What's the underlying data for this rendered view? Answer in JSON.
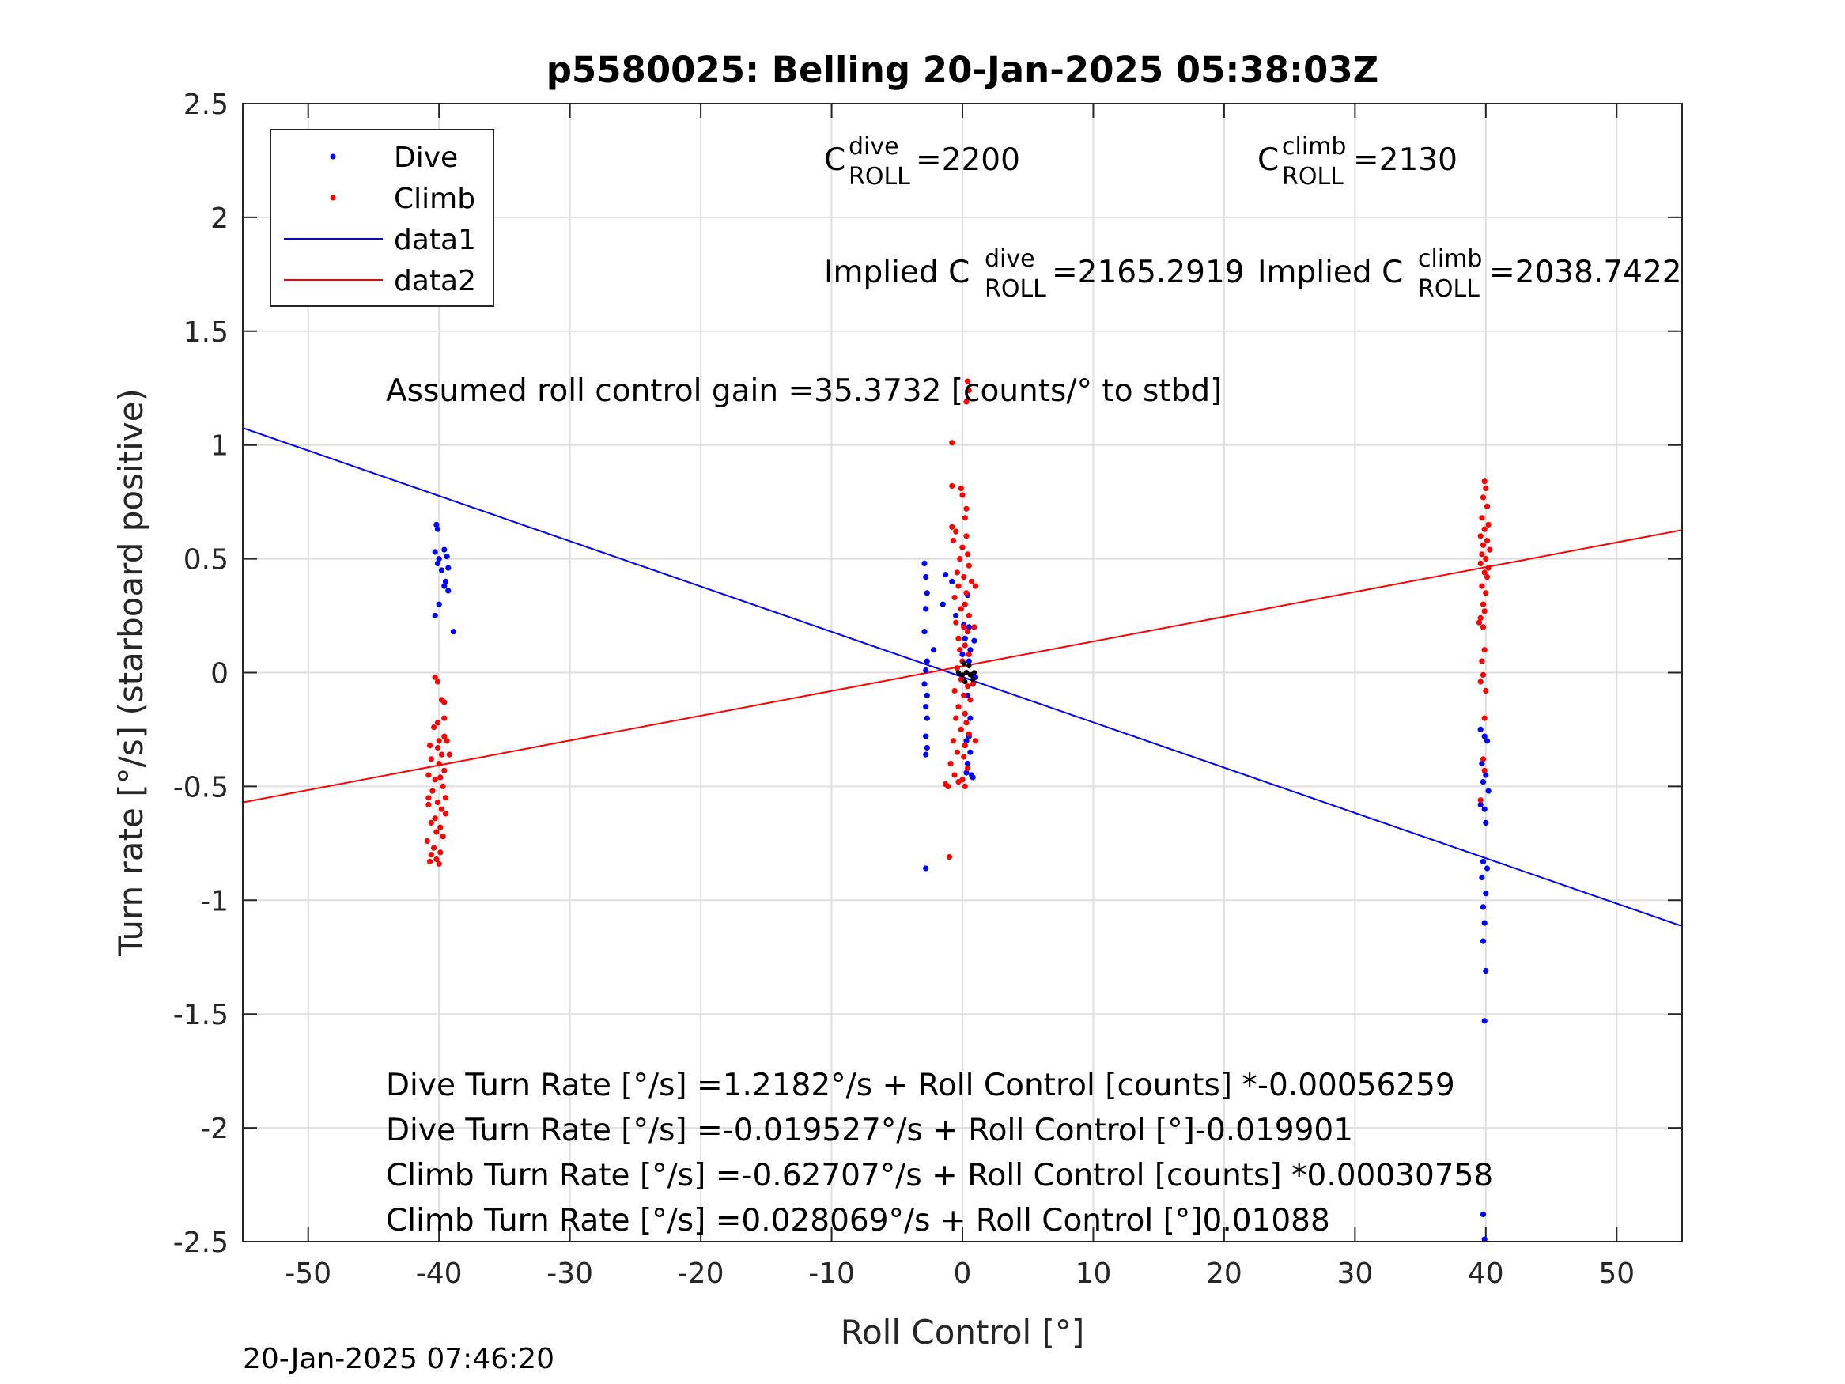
{
  "chart_data": {
    "type": "scatter",
    "title": "p5580025: Belling 20-Jan-2025 05:38:03Z",
    "xlabel": "Roll Control [°]",
    "ylabel": "Turn rate [°/s] (starboard positive)",
    "xlim": [
      -55,
      55
    ],
    "ylim": [
      -2.5,
      2.5
    ],
    "xticks": [
      -50,
      -40,
      -30,
      -20,
      -10,
      0,
      10,
      20,
      30,
      40,
      50
    ],
    "xtick_labels": [
      "-50",
      "-40",
      "-30",
      "-20",
      "-10",
      "0",
      "10",
      "20",
      "30",
      "40",
      "50"
    ],
    "yticks": [
      2.5,
      2,
      1.5,
      1,
      0.5,
      0,
      -0.5,
      -1,
      -1.5,
      -2,
      -2.5
    ],
    "ytick_labels": [
      "2.5",
      "2",
      "1.5",
      "1",
      "0.5",
      "0",
      "-0.5",
      "-1",
      "-1.5",
      "-2",
      "-2.5"
    ],
    "grid": true,
    "legend_position": "top-left",
    "series": [
      {
        "name": "Dive",
        "kind": "points",
        "color": "#0000ff",
        "points": [
          [
            -40.2,
            0.65
          ],
          [
            -40.1,
            0.63
          ],
          [
            -40.3,
            0.53
          ],
          [
            -39.6,
            0.54
          ],
          [
            -40.0,
            0.5
          ],
          [
            -39.4,
            0.51
          ],
          [
            -39.8,
            0.45
          ],
          [
            -39.3,
            0.46
          ],
          [
            -39.6,
            0.38
          ],
          [
            -39.3,
            0.36
          ],
          [
            -40.0,
            0.3
          ],
          [
            -40.3,
            0.25
          ],
          [
            -38.9,
            0.18
          ],
          [
            -39.5,
            0.4
          ],
          [
            -40.1,
            0.48
          ],
          [
            -2.9,
            0.48
          ],
          [
            -2.8,
            0.42
          ],
          [
            -2.7,
            0.35
          ],
          [
            -2.8,
            0.28
          ],
          [
            -2.9,
            0.18
          ],
          [
            -2.7,
            0.05
          ],
          [
            -2.8,
            0.01
          ],
          [
            -2.9,
            -0.05
          ],
          [
            -2.7,
            -0.1
          ],
          [
            -2.8,
            -0.15
          ],
          [
            -2.7,
            -0.2
          ],
          [
            -2.8,
            -0.28
          ],
          [
            -2.7,
            -0.33
          ],
          [
            -2.8,
            -0.36
          ],
          [
            -2.2,
            0.1
          ],
          [
            -1.5,
            0.3
          ],
          [
            -1.3,
            0.43
          ],
          [
            -0.8,
            0.4
          ],
          [
            -0.5,
            0.25
          ],
          [
            0.1,
            0.21
          ],
          [
            0.4,
            0.34
          ],
          [
            0.5,
            0.2
          ],
          [
            0.6,
            0.1
          ],
          [
            0.5,
            0.05
          ],
          [
            0.7,
            -0.01
          ],
          [
            0.8,
            -0.05
          ],
          [
            0.4,
            -0.1
          ],
          [
            0.6,
            -0.2
          ],
          [
            0.5,
            -0.28
          ],
          [
            0.3,
            -0.3
          ],
          [
            0.6,
            -0.35
          ],
          [
            0.4,
            -0.4
          ],
          [
            0.7,
            -0.45
          ],
          [
            0.8,
            -0.46
          ],
          [
            0.3,
            -0.44
          ],
          [
            0.2,
            0.15
          ],
          [
            0.0,
            0.08
          ],
          [
            0.9,
            0.14
          ],
          [
            1.0,
            -0.02
          ],
          [
            -2.8,
            -0.86
          ],
          [
            39.6,
            -0.25
          ],
          [
            39.9,
            -0.28
          ],
          [
            40.1,
            -0.3
          ],
          [
            39.7,
            -0.4
          ],
          [
            40.0,
            -0.45
          ],
          [
            39.8,
            -0.48
          ],
          [
            40.2,
            -0.52
          ],
          [
            39.6,
            -0.58
          ],
          [
            39.9,
            -0.6
          ],
          [
            40.0,
            -0.66
          ],
          [
            39.8,
            -0.83
          ],
          [
            40.1,
            -0.86
          ],
          [
            39.7,
            -0.9
          ],
          [
            40.0,
            -0.97
          ],
          [
            39.8,
            -1.03
          ],
          [
            39.9,
            -1.1
          ],
          [
            39.8,
            -1.18
          ],
          [
            40.0,
            -1.31
          ],
          [
            39.9,
            -1.53
          ],
          [
            39.8,
            -2.38
          ],
          [
            39.9,
            -2.49
          ]
        ]
      },
      {
        "name": "Climb",
        "kind": "points",
        "color": "#ff0000",
        "points": [
          [
            -40.3,
            -0.02
          ],
          [
            -40.1,
            -0.04
          ],
          [
            -39.8,
            -0.12
          ],
          [
            -39.6,
            -0.13
          ],
          [
            -40.1,
            -0.22
          ],
          [
            -39.6,
            -0.2
          ],
          [
            -40.4,
            -0.24
          ],
          [
            -40.0,
            -0.3
          ],
          [
            -40.7,
            -0.32
          ],
          [
            -39.4,
            -0.3
          ],
          [
            -40.1,
            -0.33
          ],
          [
            -39.8,
            -0.36
          ],
          [
            -40.6,
            -0.38
          ],
          [
            -39.2,
            -0.36
          ],
          [
            -40.0,
            -0.4
          ],
          [
            -39.6,
            -0.43
          ],
          [
            -40.8,
            -0.45
          ],
          [
            -40.3,
            -0.47
          ],
          [
            -39.7,
            -0.5
          ],
          [
            -40.5,
            -0.52
          ],
          [
            -39.5,
            -0.55
          ],
          [
            -40.1,
            -0.57
          ],
          [
            -40.8,
            -0.58
          ],
          [
            -39.8,
            -0.6
          ],
          [
            -39.5,
            -0.62
          ],
          [
            -40.3,
            -0.64
          ],
          [
            -40.6,
            -0.66
          ],
          [
            -39.9,
            -0.68
          ],
          [
            -40.2,
            -0.7
          ],
          [
            -39.7,
            -0.72
          ],
          [
            -40.9,
            -0.74
          ],
          [
            -40.4,
            -0.77
          ],
          [
            -39.9,
            -0.79
          ],
          [
            -40.6,
            -0.8
          ],
          [
            -40.2,
            -0.82
          ],
          [
            -40.0,
            -0.84
          ],
          [
            -40.7,
            -0.83
          ],
          [
            -39.6,
            -0.28
          ],
          [
            -40.8,
            -0.55
          ],
          [
            -39.9,
            -0.46
          ],
          [
            0.4,
            1.28
          ],
          [
            0.5,
            1.24
          ],
          [
            0.3,
            1.19
          ],
          [
            -0.8,
            1.01
          ],
          [
            -0.8,
            0.82
          ],
          [
            -0.1,
            0.81
          ],
          [
            0.0,
            0.78
          ],
          [
            0.3,
            0.72
          ],
          [
            0.2,
            0.68
          ],
          [
            -0.8,
            0.64
          ],
          [
            -0.5,
            0.62
          ],
          [
            0.3,
            0.6
          ],
          [
            -0.7,
            0.58
          ],
          [
            0.0,
            0.55
          ],
          [
            0.4,
            0.52
          ],
          [
            -0.2,
            0.5
          ],
          [
            0.5,
            0.47
          ],
          [
            -0.4,
            0.44
          ],
          [
            0.1,
            0.42
          ],
          [
            0.7,
            0.4
          ],
          [
            -0.3,
            0.38
          ],
          [
            0.3,
            0.35
          ],
          [
            -0.6,
            0.33
          ],
          [
            0.2,
            0.3
          ],
          [
            -0.1,
            0.28
          ],
          [
            0.5,
            0.25
          ],
          [
            -0.5,
            0.22
          ],
          [
            0.1,
            0.2
          ],
          [
            0.4,
            0.18
          ],
          [
            -0.3,
            0.15
          ],
          [
            0.2,
            0.12
          ],
          [
            -0.2,
            0.1
          ],
          [
            0.5,
            0.08
          ],
          [
            0.0,
            0.05
          ],
          [
            -0.4,
            0.02
          ],
          [
            0.3,
            0.0
          ],
          [
            -0.1,
            -0.03
          ],
          [
            0.4,
            -0.06
          ],
          [
            -0.6,
            -0.08
          ],
          [
            0.1,
            -0.1
          ],
          [
            0.6,
            -0.12
          ],
          [
            -0.3,
            -0.15
          ],
          [
            0.2,
            -0.18
          ],
          [
            -0.5,
            -0.2
          ],
          [
            0.3,
            -0.22
          ],
          [
            -0.1,
            -0.25
          ],
          [
            0.5,
            -0.27
          ],
          [
            -0.7,
            -0.3
          ],
          [
            0.2,
            -0.32
          ],
          [
            -0.4,
            -0.35
          ],
          [
            0.1,
            -0.37
          ],
          [
            -0.9,
            -0.4
          ],
          [
            0.4,
            -0.42
          ],
          [
            -0.6,
            -0.45
          ],
          [
            0.0,
            -0.47
          ],
          [
            -1.1,
            -0.5
          ],
          [
            -0.3,
            -0.48
          ],
          [
            -1.3,
            -0.49
          ],
          [
            0.2,
            -0.5
          ],
          [
            -1.0,
            -0.81
          ],
          [
            1.0,
            0.38
          ],
          [
            0.9,
            0.2
          ],
          [
            0.8,
            -0.05
          ],
          [
            1.0,
            -0.3
          ],
          [
            39.9,
            0.84
          ],
          [
            40.0,
            0.81
          ],
          [
            39.8,
            0.77
          ],
          [
            40.1,
            0.73
          ],
          [
            39.7,
            0.68
          ],
          [
            40.2,
            0.65
          ],
          [
            39.9,
            0.63
          ],
          [
            39.6,
            0.6
          ],
          [
            40.1,
            0.58
          ],
          [
            39.8,
            0.56
          ],
          [
            40.3,
            0.54
          ],
          [
            39.7,
            0.52
          ],
          [
            40.0,
            0.5
          ],
          [
            39.6,
            0.48
          ],
          [
            40.2,
            0.46
          ],
          [
            39.9,
            0.44
          ],
          [
            40.1,
            0.42
          ],
          [
            39.7,
            0.38
          ],
          [
            40.0,
            0.35
          ],
          [
            39.8,
            0.3
          ],
          [
            39.9,
            0.27
          ],
          [
            39.6,
            0.24
          ],
          [
            39.5,
            0.22
          ],
          [
            39.8,
            0.2
          ],
          [
            39.9,
            0.1
          ],
          [
            39.7,
            0.05
          ],
          [
            39.8,
            -0.01
          ],
          [
            39.6,
            -0.04
          ],
          [
            40.0,
            -0.08
          ],
          [
            39.9,
            -0.2
          ],
          [
            39.8,
            -0.38
          ],
          [
            39.9,
            -0.43
          ],
          [
            39.6,
            -0.56
          ]
        ]
      },
      {
        "name": "data1",
        "kind": "line",
        "color": "#0000ff",
        "points": [
          [
            -55,
            1.075
          ],
          [
            55,
            -1.114
          ]
        ]
      },
      {
        "name": "data2",
        "kind": "line",
        "color": "#ff0000",
        "points": [
          [
            -55,
            -0.5703
          ],
          [
            55,
            0.6265
          ]
        ]
      }
    ],
    "cluster_marker": {
      "color": "#000000",
      "points": [
        [
          0.0,
          -0.01
        ],
        [
          0.3,
          0.0
        ],
        [
          0.6,
          -0.01
        ],
        [
          0.9,
          0.0
        ],
        [
          -0.3,
          0.0
        ],
        [
          0.2,
          -0.04
        ],
        [
          0.5,
          0.03
        ],
        [
          0.8,
          -0.03
        ],
        [
          0.1,
          0.04
        ]
      ]
    },
    "annotations": {
      "c_dive_base": "C",
      "c_dive_sup": "dive",
      "c_dive_sub": "ROLL",
      "c_dive_value": " =2200",
      "c_climb_base": "C",
      "c_climb_sup": "climb",
      "c_climb_sub": "ROLL",
      "c_climb_value": " =2130",
      "implied_dive_base": "Implied C",
      "implied_dive_sup": "dive",
      "implied_dive_sub": "ROLL",
      "implied_dive_value": " =2165.2919",
      "implied_climb_base": "Implied C",
      "implied_climb_sup": "climb",
      "implied_climb_sub": "ROLL",
      "implied_climb_value": " =2038.7422",
      "gain": "Assumed roll control gain =35.3732 [counts/° to stbd]",
      "eq1": "Dive Turn Rate [°/s] =1.2182°/s + Roll Control [counts] *-0.00056259",
      "eq2": "Dive Turn Rate [°/s] =-0.019527°/s + Roll Control [°]-0.019901",
      "eq3": "Climb Turn Rate [°/s] =-0.62707°/s + Roll Control [counts] *0.00030758",
      "eq4": "Climb Turn Rate [°/s] =0.028069°/s + Roll Control [°]0.01088"
    },
    "timestamp": "20-Jan-2025 07:46:20"
  }
}
